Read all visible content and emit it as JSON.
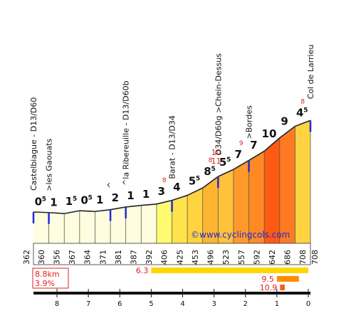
{
  "chart_data": {
    "type": "area",
    "title": "",
    "xlabel": "",
    "ylabel": "",
    "credit": "©www.cyclingcols.com",
    "x_axis": {
      "ticks": [
        "8",
        "7",
        "6",
        "5",
        "4",
        "3",
        "2",
        "1",
        "0"
      ],
      "direction": "km to summit"
    },
    "summary": {
      "distance": "8.8km",
      "avg_gradient": "3.9%"
    },
    "start_altitude": "362",
    "end_altitude": "708",
    "segments": [
      {
        "gradient": "0.5",
        "label_main": "0",
        "label_sub": "5",
        "alt_end": "360",
        "color": "#fffde0"
      },
      {
        "gradient": "1",
        "label_main": "1",
        "label_sub": "",
        "alt_end": "356",
        "color": "#fffde0"
      },
      {
        "gradient": "1.5",
        "label_main": "1",
        "label_sub": "5",
        "alt_end": "367",
        "color": "#fffde0"
      },
      {
        "gradient": "0.5",
        "label_main": "0",
        "label_sub": "5",
        "alt_end": "364",
        "color": "#fffde0"
      },
      {
        "gradient": "1",
        "label_main": "1",
        "label_sub": "",
        "alt_end": "371",
        "color": "#fffde0"
      },
      {
        "gradient": "2",
        "label_main": "2",
        "label_sub": "",
        "alt_end": "381",
        "color": "#fffde0"
      },
      {
        "gradient": "1",
        "label_main": "1",
        "label_sub": "",
        "alt_end": "387",
        "color": "#fffde0"
      },
      {
        "gradient": "1",
        "label_main": "1",
        "label_sub": "",
        "alt_end": "392",
        "color": "#fffde0"
      },
      {
        "gradient": "3",
        "label_main": "3",
        "label_sub": "",
        "alt_end": "406",
        "color": "#fffb70",
        "max": "8"
      },
      {
        "gradient": "4",
        "label_main": "4",
        "label_sub": "",
        "alt_end": "425",
        "color": "#ffe34a"
      },
      {
        "gradient": "5.5",
        "label_main": "5",
        "label_sub": "5",
        "alt_end": "453",
        "color": "#ffd340"
      },
      {
        "gradient": "8.5",
        "label_main": "8",
        "label_sub": "5",
        "alt_end": "496",
        "color": "#ffb530",
        "max": "8",
        "max2": "10",
        "max3": "11"
      },
      {
        "gradient": "5.5",
        "label_main": "5",
        "label_sub": "5",
        "alt_end": "523",
        "color": "#ffc23a"
      },
      {
        "gradient": "7",
        "label_main": "7",
        "label_sub": "",
        "alt_end": "557",
        "color": "#ff9a2a",
        "max": "9"
      },
      {
        "gradient": "7",
        "label_main": "7",
        "label_sub": "",
        "alt_end": "592",
        "color": "#ff8a24"
      },
      {
        "gradient": "10",
        "label_main": "10",
        "label_sub": "",
        "alt_end": "642",
        "color": "#ff5a14"
      },
      {
        "gradient": "9",
        "label_main": "9",
        "label_sub": "",
        "alt_end": "686",
        "color": "#ff7a20"
      },
      {
        "gradient": "4.5",
        "label_main": "4",
        "label_sub": "5",
        "alt_end": "708",
        "color": "#ffd340",
        "max": "8"
      }
    ],
    "waypoints": [
      {
        "name": "Castelbiague - D13/D60",
        "segment": 0
      },
      {
        "name": ">les Gaouats",
        "segment": 1
      },
      {
        "name": "^",
        "segment": 5
      },
      {
        "name": "^la Ribereuille - D13/D60b",
        "segment": 6
      },
      {
        "name": "Barat - D13/D34",
        "segment": 9
      },
      {
        "name": "D34/D60g >Chein-Dessus",
        "segment": 12
      },
      {
        "name": ">Bordes",
        "segment": 14
      },
      {
        "name": "Col de Larrieu",
        "segment": 18
      }
    ],
    "steep_bars": [
      {
        "label": "6.3",
        "from_km": 5.0,
        "to_km": 0.0,
        "color": "#ffd700"
      },
      {
        "label": "9.5",
        "from_km": 1.0,
        "to_km": 0.3,
        "color": "#ff8c00"
      },
      {
        "label": "10.9",
        "from_km": 0.9,
        "to_km": 0.75,
        "color": "#ff5a14"
      }
    ]
  }
}
